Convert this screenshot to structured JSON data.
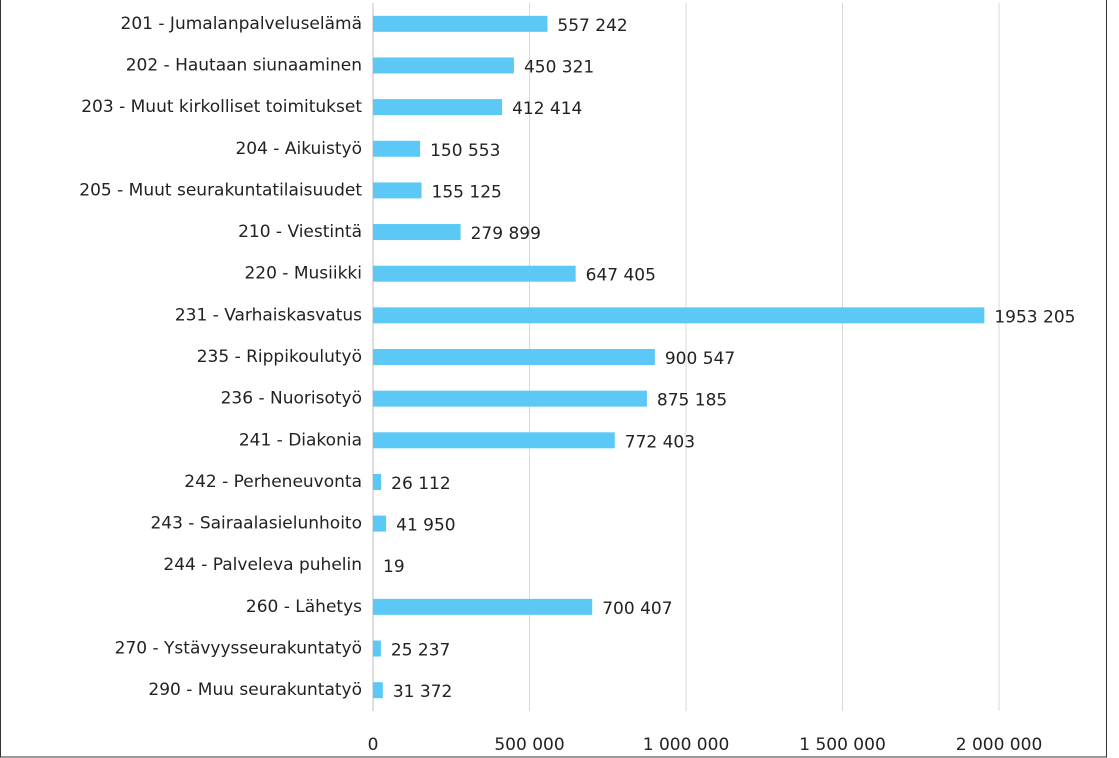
{
  "chart_data": {
    "type": "bar",
    "orientation": "horizontal",
    "categories": [
      "201 - Jumalanpalveluselämä",
      "202 - Hautaan siunaaminen",
      "203 - Muut kirkolliset toimitukset",
      "204 - Aikuistyö",
      "205 - Muut seurakuntatilaisuudet",
      "210 - Viestintä",
      "220 - Musiikki",
      "231 - Varhaiskasvatus",
      "235 - Rippikoulutyö",
      "236 - Nuorisotyö",
      "241 - Diakonia",
      "242 - Perheneuvonta",
      "243 - Sairaalasielunhoito",
      "244 - Palveleva puhelin",
      "260 - Lähetys",
      "270 - Ystävyysseurakuntatyö",
      "290 - Muu seurakuntatyö"
    ],
    "values": [
      557242,
      450321,
      412414,
      150553,
      155125,
      279899,
      647405,
      1953205,
      900547,
      875185,
      772403,
      26112,
      41950,
      19,
      700407,
      25237,
      31372
    ],
    "value_labels": [
      "557 242",
      "450 321",
      "412 414",
      "150 553",
      "155 125",
      "279 899",
      "647 405",
      "1953 205",
      "900 547",
      "875 185",
      "772 403",
      "26 112",
      "41 950",
      "19",
      "700 407",
      "25 237",
      "31 372"
    ],
    "color": "#5bc8f5",
    "xlim": [
      0,
      2000000
    ],
    "xticks": [
      0,
      {
        "value": 500000,
        "label": "500 000"
      },
      {
        "value": 1000000,
        "label": "1 000 000"
      },
      {
        "value": 1500000,
        "label": "1 500 000"
      },
      {
        "value": 2000000,
        "label": "2 000 000"
      }
    ],
    "grid": true
  }
}
